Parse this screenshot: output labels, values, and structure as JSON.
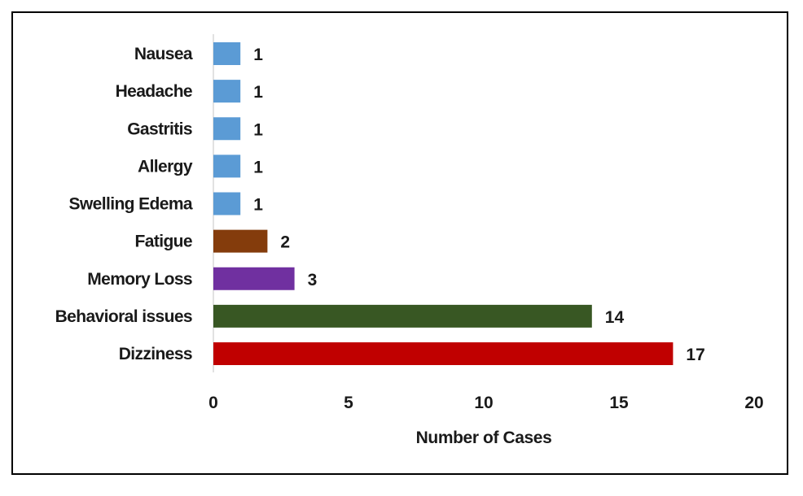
{
  "chart_data": {
    "type": "bar",
    "orientation": "horizontal",
    "title": "",
    "xlabel": "Number of Cases",
    "ylabel": "",
    "xlim": [
      0,
      20
    ],
    "x_ticks": [
      0,
      5,
      10,
      15,
      20
    ],
    "grid": false,
    "legend": "none",
    "categories": [
      "Nausea",
      "Headache",
      "Gastritis",
      "Allergy",
      "Swelling Edema",
      "Fatigue",
      "Memory Loss",
      "Behavioral issues",
      "Dizziness"
    ],
    "values": [
      1,
      1,
      1,
      1,
      1,
      2,
      3,
      14,
      17
    ],
    "colors": [
      "#5b9bd5",
      "#5b9bd5",
      "#5b9bd5",
      "#5b9bd5",
      "#5b9bd5",
      "#843c0c",
      "#7030a0",
      "#385723",
      "#c00000"
    ],
    "data_labels": [
      "1",
      "1",
      "1",
      "1",
      "1",
      "2",
      "3",
      "14",
      "17"
    ]
  }
}
